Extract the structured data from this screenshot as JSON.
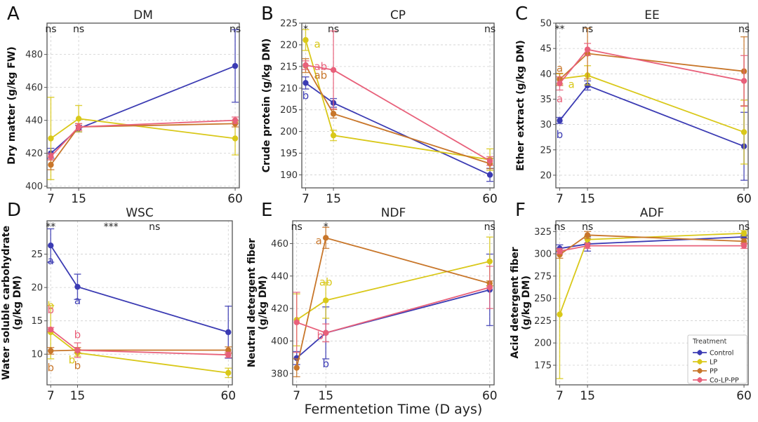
{
  "figure": {
    "xlabel": "Fermentetion Time (D ays)"
  },
  "legend": {
    "title": "Treatment",
    "placement": "lower-right of panel F",
    "entries": [
      "Control",
      "LP",
      "PP",
      "Co-LP-PP"
    ]
  },
  "colors": {
    "Control": "#3b3bb3",
    "LP": "#d9c819",
    "PP": "#c8762a",
    "Co-LP-PP": "#e8607a"
  },
  "chart_data": [
    {
      "panel": "A",
      "type": "line",
      "title": "DM",
      "ylabel": "Dry matter (g/kg FW)",
      "xlabel": "",
      "x": [
        7,
        15,
        60
      ],
      "xticks": [
        "7",
        "15",
        "60"
      ],
      "ylim": [
        399,
        499
      ],
      "yticks": [
        400,
        420,
        440,
        460,
        480
      ],
      "grid": true,
      "significance": [
        {
          "x": 7,
          "text": "ns"
        },
        {
          "x": 15,
          "text": "ns"
        },
        {
          "x": 60,
          "text": "ns"
        }
      ],
      "series": [
        {
          "name": "Control",
          "values": [
            420,
            435,
            473
          ],
          "err": [
            3,
            2,
            22
          ]
        },
        {
          "name": "LP",
          "values": [
            429,
            441,
            429
          ],
          "err": [
            25,
            8,
            10
          ]
        },
        {
          "name": "PP",
          "values": [
            413,
            436,
            438
          ],
          "err": [
            3,
            2,
            2
          ]
        },
        {
          "name": "Co-LP-PP",
          "values": [
            418,
            436,
            440
          ],
          "err": [
            2,
            2,
            2
          ]
        }
      ],
      "letters": []
    },
    {
      "panel": "B",
      "type": "line",
      "title": "CP",
      "ylabel": "Crude protein (g/kg DM)",
      "xlabel": "",
      "x": [
        7,
        15,
        60
      ],
      "xticks": [
        "7",
        "15",
        "60"
      ],
      "ylim": [
        187,
        225
      ],
      "yticks": [
        190,
        195,
        200,
        205,
        210,
        215,
        220,
        225
      ],
      "grid": true,
      "significance": [
        {
          "x": 7,
          "text": "*"
        },
        {
          "x": 15,
          "text": "ns"
        },
        {
          "x": 60,
          "text": "ns"
        }
      ],
      "series": [
        {
          "name": "Control",
          "values": [
            211.2,
            206.6,
            190.0
          ],
          "err": [
            1.4,
            1.0,
            1.5
          ]
        },
        {
          "name": "LP",
          "values": [
            221.1,
            199.1,
            193.5
          ],
          "err": [
            2.4,
            1.2,
            2.5
          ]
        },
        {
          "name": "PP",
          "values": [
            215.2,
            204.1,
            192.6
          ],
          "err": [
            1.6,
            1.0,
            1.2
          ]
        },
        {
          "name": "Co-LP-PP",
          "values": [
            215.3,
            214.2,
            193.2
          ],
          "err": [
            1.0,
            9.0,
            1.0
          ]
        }
      ],
      "letters": [
        {
          "series": "LP",
          "x": 7,
          "text": "a"
        },
        {
          "series": "Co-LP-PP",
          "x": 7,
          "text": "ab"
        },
        {
          "series": "PP",
          "x": 7,
          "text": "ab"
        },
        {
          "series": "Control",
          "x": 7,
          "text": "b"
        }
      ]
    },
    {
      "panel": "C",
      "type": "line",
      "title": "EE",
      "ylabel": "Ether extract (g/kg DM)",
      "xlabel": "",
      "x": [
        7,
        15,
        60
      ],
      "xticks": [
        "7",
        "15",
        "60"
      ],
      "ylim": [
        17.5,
        50
      ],
      "yticks": [
        20,
        25,
        30,
        35,
        40,
        45,
        50
      ],
      "grid": true,
      "significance": [
        {
          "x": 7,
          "text": "**"
        },
        {
          "x": 15,
          "text": "ns"
        },
        {
          "x": 60,
          "text": "ns"
        }
      ],
      "series": [
        {
          "name": "Control",
          "values": [
            30.8,
            37.7,
            25.7
          ],
          "err": [
            0.6,
            0.9,
            6.7
          ]
        },
        {
          "name": "LP",
          "values": [
            39.0,
            39.7,
            28.5
          ],
          "err": [
            1.0,
            1.9,
            6.3
          ]
        },
        {
          "name": "PP",
          "values": [
            38.9,
            44.0,
            40.5
          ],
          "err": [
            1.2,
            5.0,
            6.8
          ]
        },
        {
          "name": "Co-LP-PP",
          "values": [
            38.1,
            44.8,
            38.6
          ],
          "err": [
            1.3,
            1.2,
            5.0
          ]
        }
      ],
      "letters": [
        {
          "series": "PP",
          "x": 7,
          "text": "a"
        },
        {
          "series": "LP",
          "x": 7,
          "text": "a"
        },
        {
          "series": "Co-LP-PP",
          "x": 7,
          "text": "a"
        },
        {
          "series": "Control",
          "x": 7,
          "text": "b"
        }
      ]
    },
    {
      "panel": "D",
      "type": "line",
      "title": "WSC",
      "ylabel": "Water soluble carbohydrate\n(g/kg DM)",
      "xlabel": "",
      "x": [
        7,
        15,
        60
      ],
      "xticks": [
        "7",
        "15",
        "60"
      ],
      "ylim": [
        5.4,
        30
      ],
      "yticks": [
        10,
        15,
        20,
        25
      ],
      "grid": true,
      "significance": [
        {
          "x": 7,
          "text": "**"
        },
        {
          "x": 25,
          "text": "***"
        },
        {
          "x": 38,
          "text": "ns"
        }
      ],
      "series": [
        {
          "name": "Control",
          "values": [
            26.3,
            20.1,
            13.3
          ],
          "err": [
            2.5,
            1.9,
            3.9
          ]
        },
        {
          "name": "LP",
          "values": [
            13.3,
            10.2,
            7.2
          ],
          "err": [
            4.0,
            0.5,
            0.7
          ]
        },
        {
          "name": "PP",
          "values": [
            10.5,
            10.6,
            10.6
          ],
          "err": [
            0.5,
            0.4,
            0.5
          ]
        },
        {
          "name": "Co-LP-PP",
          "values": [
            13.7,
            10.6,
            9.9
          ],
          "err": [
            0.3,
            1.1,
            0.4
          ]
        }
      ],
      "letters": [
        {
          "series": "Control",
          "x": 7,
          "text": "a"
        },
        {
          "series": "LP",
          "x": 7,
          "text": "b"
        },
        {
          "series": "Co-LP-PP",
          "x": 7,
          "text": "b"
        },
        {
          "series": "PP",
          "x": 7,
          "text": "b"
        },
        {
          "series": "Control",
          "x": 15,
          "text": "a"
        },
        {
          "series": "Co-LP-PP",
          "x": 15,
          "text": "b"
        },
        {
          "series": "LP",
          "x": 15,
          "text": "b"
        },
        {
          "series": "PP",
          "x": 15,
          "text": "b"
        }
      ]
    },
    {
      "panel": "E",
      "type": "line",
      "title": "NDF",
      "ylabel": "Neutral detergent fiber\n(g/kg DM)",
      "xlabel": "Fermentetion Time (D ays)",
      "x": [
        7,
        15,
        60
      ],
      "xticks": [
        "7",
        "15",
        "60"
      ],
      "ylim": [
        373,
        474
      ],
      "yticks": [
        380,
        400,
        420,
        440,
        460
      ],
      "grid": true,
      "significance": [
        {
          "x": 7,
          "text": "ns"
        },
        {
          "x": 15,
          "text": "*"
        },
        {
          "x": 60,
          "text": "ns"
        }
      ],
      "series": [
        {
          "name": "Control",
          "values": [
            389.5,
            405,
            431.5
          ],
          "err": [
            4,
            16,
            22
          ]
        },
        {
          "name": "LP",
          "values": [
            413,
            425,
            449
          ],
          "err": [
            16,
            11,
            15
          ]
        },
        {
          "name": "PP",
          "values": [
            383.5,
            463.5,
            435.5
          ],
          "err": [
            5.5,
            6.5,
            1.5
          ]
        },
        {
          "name": "Co-LP-PP",
          "values": [
            411.5,
            405,
            433
          ],
          "err": [
            18.5,
            5.5,
            13
          ]
        }
      ],
      "letters": [
        {
          "series": "PP",
          "x": 15,
          "text": "a"
        },
        {
          "series": "LP",
          "x": 15,
          "text": "ab"
        },
        {
          "series": "Co-LP-PP",
          "x": 15,
          "text": "b"
        },
        {
          "series": "Control",
          "x": 15,
          "text": "b"
        }
      ]
    },
    {
      "panel": "F",
      "type": "line",
      "title": "ADF",
      "ylabel": "Acid detergent fiber\n(g/kg DM)",
      "xlabel": "",
      "x": [
        7,
        15,
        60
      ],
      "xticks": [
        "7",
        "15",
        "60"
      ],
      "ylim": [
        153,
        337
      ],
      "yticks": [
        175,
        200,
        225,
        250,
        275,
        300,
        325
      ],
      "grid": true,
      "significance": [
        {
          "x": 7,
          "text": "ns"
        },
        {
          "x": 15,
          "text": "ns"
        },
        {
          "x": 60,
          "text": "ns"
        }
      ],
      "series": [
        {
          "name": "Control",
          "values": [
            306,
            311,
            319
          ],
          "err": [
            4,
            8,
            2
          ]
        },
        {
          "name": "LP",
          "values": [
            232,
            316,
            323
          ],
          "err": [
            72,
            4,
            3
          ]
        },
        {
          "name": "PP",
          "values": [
            299,
            321,
            314
          ],
          "err": [
            4,
            4,
            3
          ]
        },
        {
          "name": "Co-LP-PP",
          "values": [
            303,
            309,
            309
          ],
          "err": [
            3,
            3,
            3
          ]
        }
      ],
      "letters": []
    }
  ]
}
